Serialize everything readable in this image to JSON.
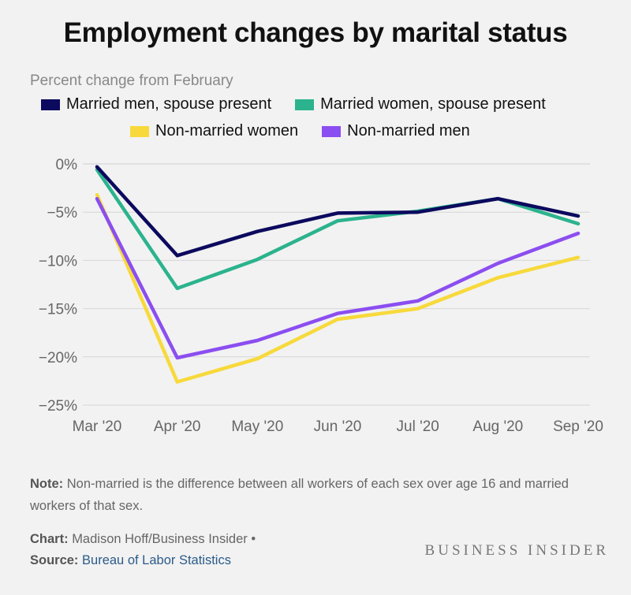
{
  "title": "Employment changes by marital status",
  "subtitle": "Percent change from February",
  "note_label": "Note:",
  "note_text": "Non-married is the difference between all workers of each sex over age 16 and married workers of that sex.",
  "chart_label": "Chart:",
  "chart_credit": "Madison Hoff/Business Insider •",
  "source_label": "Source:",
  "source_text": "Bureau of Labor Statistics",
  "brand": "BUSINESS INSIDER",
  "chart_data": {
    "type": "line",
    "title": "Employment changes by marital status",
    "ylabel": "Percent change from February",
    "x": [
      "Mar '20",
      "Apr '20",
      "May '20",
      "Jun '20",
      "Jul '20",
      "Aug '20",
      "Sep '20"
    ],
    "y_ticks": [
      "0%",
      "−5%",
      "−10%",
      "−15%",
      "−20%",
      "−25%"
    ],
    "y_tick_values": [
      0,
      -5,
      -10,
      -15,
      -20,
      -25
    ],
    "ylim": [
      -25,
      0
    ],
    "grid": true,
    "legend_position": "top",
    "series": [
      {
        "name": "Married men, spouse present",
        "color": "#0c0a5e",
        "values": [
          -0.3,
          -9.5,
          -7.0,
          -5.1,
          -5.0,
          -3.6,
          -5.4
        ]
      },
      {
        "name": "Married women, spouse present",
        "color": "#2bb38d",
        "values": [
          -0.6,
          -12.9,
          -9.9,
          -5.9,
          -4.9,
          -3.6,
          -6.2
        ]
      },
      {
        "name": "Non-married women",
        "color": "#f7d93b",
        "values": [
          -3.2,
          -22.6,
          -20.2,
          -16.1,
          -15.0,
          -11.8,
          -9.7
        ]
      },
      {
        "name": "Non-married men",
        "color": "#8b4ef0",
        "values": [
          -3.6,
          -20.1,
          -18.3,
          -15.5,
          -14.2,
          -10.3,
          -7.2
        ]
      }
    ]
  }
}
